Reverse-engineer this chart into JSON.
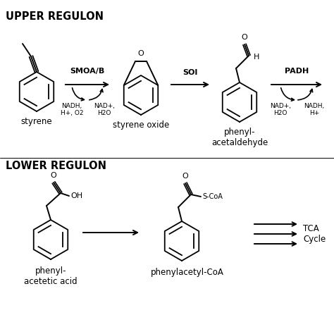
{
  "background_color": "#ffffff",
  "upper_regulon_label": "UPPER REGULON",
  "lower_regulon_label": "LOWER REGULON",
  "enzyme_smoa": "SMOA/B",
  "enzyme_soi": "SOI",
  "enzyme_padh": "PADH",
  "cofactor_smoa_left": "NADH,\nH+, O2",
  "cofactor_smoa_right": "NAD+,\nH2O",
  "cofactor_padh_left": "NAD+,\nH2O",
  "cofactor_padh_right": "NADH,\nH+",
  "label_styrene": "styrene",
  "label_styrene_oxide": "styrene oxide",
  "label_phenylacetaldehyde": "phenyl-\nacetaldehyde",
  "label_phenylacetic_acid": "phenyl-\nacetetic acid",
  "label_phenylacetyl_coa": "phenylacetyl-CoA",
  "label_tca": "TCA\nCycle",
  "line_color": "#000000",
  "text_color": "#000000",
  "font_size_header": 10.5,
  "font_size_label": 8.5,
  "font_size_small": 7.0,
  "font_size_chem": 8.0
}
